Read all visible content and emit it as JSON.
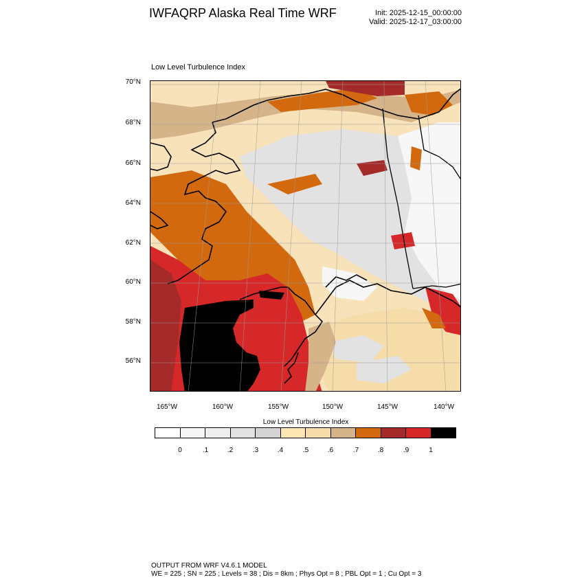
{
  "header": {
    "title": "IWFAQRP Alaska Real Time WRF",
    "init": "Init: 2025-12-15_00:00:00",
    "valid": "Valid: 2025-12-17_03:00:00"
  },
  "plot": {
    "title": "Low Level Turbulence Index"
  },
  "axes": {
    "lat_labels": [
      "70°N",
      "68°N",
      "66°N",
      "64°N",
      "62°N",
      "60°N",
      "58°N",
      "56°N"
    ],
    "lon_labels": [
      "165°W",
      "160°W",
      "155°W",
      "150°W",
      "145°W",
      "140°W"
    ]
  },
  "colorbar": {
    "title": "Low Level Turbulence Index",
    "labels": [
      "0",
      ".1",
      ".2",
      ".3",
      ".4",
      ".5",
      ".6",
      ".7",
      ".8",
      ".9",
      "1"
    ],
    "colors": [
      "#ffffff",
      "#f7f7f7",
      "#efefef",
      "#e2e2e2",
      "#d4d4d4",
      "#fde6b4",
      "#f5dca9",
      "#d6b48a",
      "#d2690f",
      "#a52a2a",
      "#d62828",
      "#000000"
    ]
  },
  "footer": {
    "line1": "OUTPUT FROM WRF V4.6.1 MODEL",
    "line2": "WE = 225 ; SN = 225 ; Levels = 38 ; Dis = 8km ; Phys Opt = 8 ; PBL Opt = 1 ; Cu Opt = 3"
  }
}
